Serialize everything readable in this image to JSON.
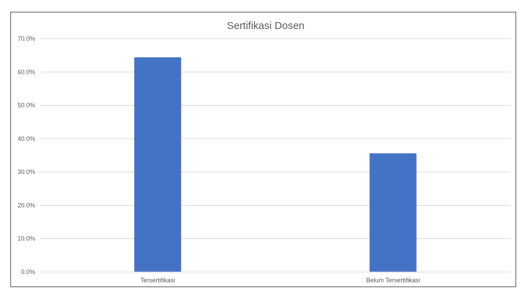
{
  "chart_data": {
    "type": "bar",
    "title": "Sertifikasi Dosen",
    "categories": [
      "Tersertifikasi",
      "Belum Tersertifikasi"
    ],
    "values": [
      64.4,
      35.6
    ],
    "ylim": [
      0,
      70
    ],
    "ytick_values": [
      0,
      10,
      20,
      30,
      40,
      50,
      60,
      70
    ],
    "ytick_labels": [
      "0.0%",
      "10.0%",
      "20.0%",
      "30.0%",
      "40.0%",
      "50.0%",
      "60.0%",
      "70.0%"
    ],
    "grid": true,
    "bar_color": "#4472C4",
    "grid_color": "#D9D9D9",
    "axis_color": "#D9D9D9"
  }
}
